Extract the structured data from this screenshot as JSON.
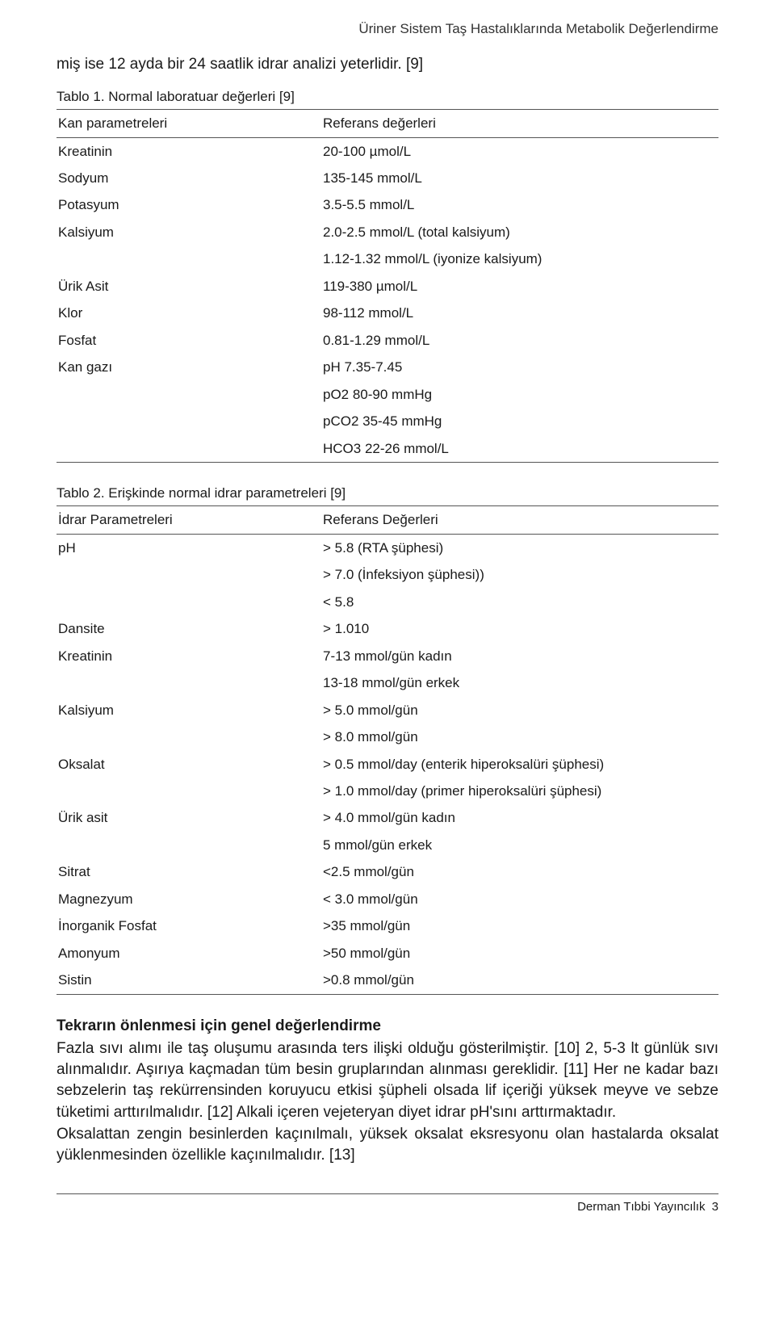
{
  "running_header": "Üriner Sistem Taş Hastalıklarında Metabolik Değerlendirme",
  "intro_line": "miş ise 12 ayda bir 24 saatlik idrar analizi yeterlidir. [9]",
  "table1": {
    "caption": "Tablo 1. Normal laboratuar değerleri [9]",
    "col_param": "Kan parametreleri",
    "col_ref": "Referans değerleri",
    "rows": [
      {
        "p": "Kreatinin",
        "v": [
          "20-100 µmol/L"
        ]
      },
      {
        "p": "Sodyum",
        "v": [
          "135-145 mmol/L"
        ]
      },
      {
        "p": "Potasyum",
        "v": [
          "3.5-5.5 mmol/L"
        ]
      },
      {
        "p": "Kalsiyum",
        "v": [
          "2.0-2.5 mmol/L (total kalsiyum)",
          "1.12-1.32 mmol/L (iyonize kalsiyum)"
        ]
      },
      {
        "p": "Ürik Asit",
        "v": [
          "119-380 µmol/L"
        ]
      },
      {
        "p": "Klor",
        "v": [
          "98-112 mmol/L"
        ]
      },
      {
        "p": "Fosfat",
        "v": [
          "0.81-1.29 mmol/L"
        ]
      },
      {
        "p": "Kan gazı",
        "v": [
          "pH 7.35-7.45",
          "pO2 80-90 mmHg",
          "pCO2 35-45 mmHg",
          "HCO3 22-26 mmol/L"
        ]
      }
    ]
  },
  "table2": {
    "caption": "Tablo 2. Erişkinde normal idrar parametreleri [9]",
    "col_param": "İdrar Parametreleri",
    "col_ref": "Referans Değerleri",
    "rows": [
      {
        "p": "pH",
        "v": [
          "> 5.8 (RTA şüphesi)",
          "> 7.0 (İnfeksiyon şüphesi))",
          "< 5.8"
        ]
      },
      {
        "p": "Dansite",
        "v": [
          "> 1.010"
        ]
      },
      {
        "p": "Kreatinin",
        "v": [
          "7-13 mmol/gün kadın",
          "13-18 mmol/gün erkek"
        ]
      },
      {
        "p": "Kalsiyum",
        "v": [
          "> 5.0 mmol/gün",
          "> 8.0 mmol/gün"
        ]
      },
      {
        "p": "Oksalat",
        "v": [
          "> 0.5 mmol/day (enterik hiperoksalüri şüphesi)",
          "> 1.0 mmol/day (primer hiperoksalüri şüphesi)"
        ]
      },
      {
        "p": "Ürik asit",
        "v": [
          "> 4.0 mmol/gün kadın",
          "5 mmol/gün erkek"
        ]
      },
      {
        "p": "Sitrat",
        "v": [
          "<2.5 mmol/gün"
        ]
      },
      {
        "p": "Magnezyum",
        "v": [
          "< 3.0 mmol/gün"
        ]
      },
      {
        "p": "İnorganik Fosfat",
        "v": [
          ">35 mmol/gün"
        ]
      },
      {
        "p": "Amonyum",
        "v": [
          ">50 mmol/gün"
        ]
      },
      {
        "p": "Sistin",
        "v": [
          ">0.8 mmol/gün"
        ]
      }
    ]
  },
  "section_title": "Tekrarın önlenmesi için genel değerlendirme",
  "paragraphs": [
    "Fazla sıvı alımı ile taş oluşumu arasında ters ilişki olduğu gösterilmiştir. [10] 2, 5-3 lt günlük sıvı alınmalıdır. Aşırıya kaçmadan tüm besin gruplarından alınması gereklidir. [11] Her ne kadar bazı sebzelerin taş rekürrensinden koruyucu etkisi şüpheli olsada lif içeriği yüksek meyve ve sebze tüketimi arttırılmalıdır. [12] Alkali içeren vejeteryan diyet idrar pH'sını arttırmaktadır.",
    "Oksalattan zengin besinlerden kaçınılmalı, yüksek oksalat eksresyonu olan hastalarda oksalat yüklenmesinden özellikle kaçınılmalıdır. [13]"
  ],
  "footer_text": "Derman Tıbbi Yayıncılık",
  "footer_page": "3",
  "colors": {
    "text": "#1a1a1a",
    "rule": "#555555",
    "bg": "#ffffff"
  }
}
